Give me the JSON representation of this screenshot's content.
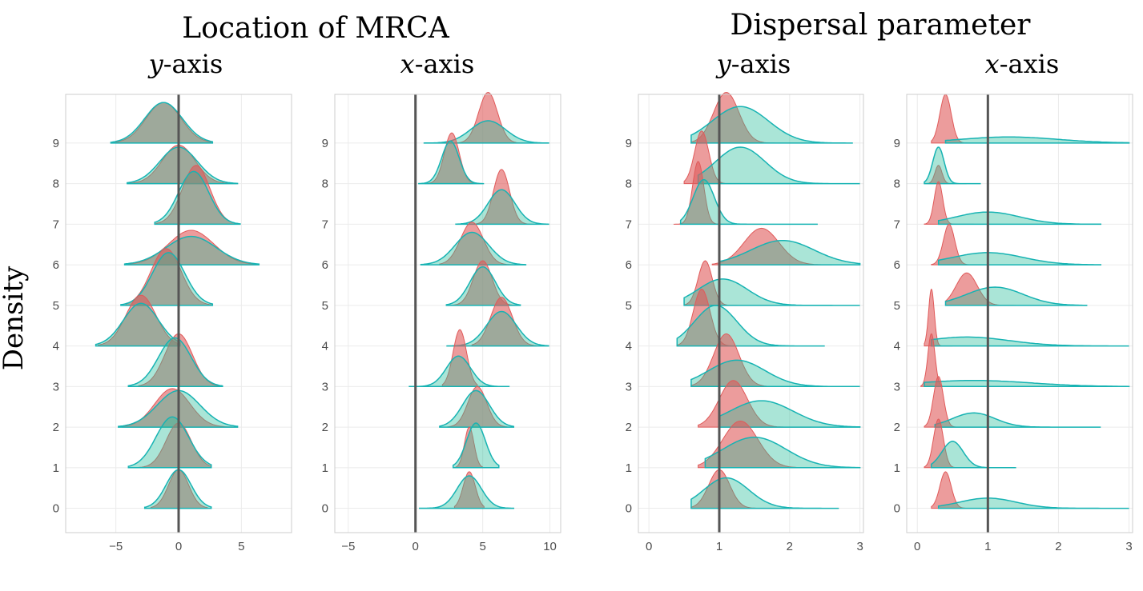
{
  "figure": {
    "group_titles": [
      "Location of MRCA",
      "Dispersal parameter"
    ],
    "ylabel": "Density",
    "colors": {
      "red": "#e05a5a",
      "teal": "#2bbd9c",
      "teal_line": "#17b3b3",
      "ref_line": "#555555",
      "grid": "#ebebeb",
      "frame": "#cccccc"
    }
  },
  "chart_data": [
    {
      "type": "area",
      "group": "Location of MRCA",
      "subtitle_var": "y",
      "subtitle_rest": "-axis",
      "xlim": [
        -9,
        9
      ],
      "xticks": [
        -5,
        0,
        5
      ],
      "ylim": [
        -0.6,
        10.2
      ],
      "yticks": [
        0,
        1,
        2,
        3,
        4,
        5,
        6,
        7,
        8,
        9
      ],
      "reference_x": 0,
      "ridges": [
        {
          "row": 0,
          "red": {
            "mu": 0,
            "s": 0.8,
            "h": 0.95,
            "lo": -2.2,
            "hi": 2.3
          },
          "teal": {
            "mu": 0,
            "s": 1.0,
            "h": 0.95,
            "lo": -2.7,
            "hi": 2.6
          }
        },
        {
          "row": 1,
          "red": {
            "mu": 0,
            "s": 1.0,
            "h": 1.1,
            "lo": -3.3,
            "hi": 2.6
          },
          "teal": {
            "mu": -0.5,
            "s": 1.3,
            "h": 1.25,
            "lo": -4.0,
            "hi": 2.6
          }
        },
        {
          "row": 2,
          "red": {
            "mu": -0.5,
            "s": 1.4,
            "h": 0.95,
            "lo": -4.5,
            "hi": 4.7
          },
          "teal": {
            "mu": 0,
            "s": 1.7,
            "h": 0.9,
            "lo": -4.8,
            "hi": 4.7
          }
        },
        {
          "row": 3,
          "red": {
            "mu": 0,
            "s": 1.1,
            "h": 1.3,
            "lo": -3.2,
            "hi": 3.4
          },
          "teal": {
            "mu": -0.3,
            "s": 1.3,
            "h": 1.2,
            "lo": -4.0,
            "hi": 3.5
          }
        },
        {
          "row": 4,
          "red": {
            "mu": -3,
            "s": 1.2,
            "h": 1.25,
            "lo": -6.4,
            "hi": -0.1
          },
          "teal": {
            "mu": -3,
            "s": 1.4,
            "h": 1.05,
            "lo": -6.6,
            "hi": 0.1
          }
        },
        {
          "row": 5,
          "red": {
            "mu": -1,
            "s": 1.2,
            "h": 1.4,
            "lo": -4.2,
            "hi": 2.7
          },
          "teal": {
            "mu": -0.8,
            "s": 1.3,
            "h": 1.3,
            "lo": -4.6,
            "hi": 2.7
          }
        },
        {
          "row": 6,
          "red": {
            "mu": 1,
            "s": 1.8,
            "h": 0.85,
            "lo": -4.0,
            "hi": 6.2
          },
          "teal": {
            "mu": 1,
            "s": 2.0,
            "h": 0.7,
            "lo": -4.3,
            "hi": 6.4
          }
        },
        {
          "row": 7,
          "red": {
            "mu": 1.4,
            "s": 1.1,
            "h": 1.45,
            "lo": -1.8,
            "hi": 4.8
          },
          "teal": {
            "mu": 1.2,
            "s": 1.2,
            "h": 1.3,
            "lo": -1.9,
            "hi": 4.9
          }
        },
        {
          "row": 8,
          "red": {
            "mu": 0,
            "s": 1.3,
            "h": 0.95,
            "lo": -4.0,
            "hi": 4.6
          },
          "teal": {
            "mu": 0,
            "s": 1.5,
            "h": 0.9,
            "lo": -4.1,
            "hi": 4.7
          }
        },
        {
          "row": 9,
          "red": {
            "mu": -1.2,
            "s": 1.4,
            "h": 1.0,
            "lo": -5.2,
            "hi": 2.6
          },
          "teal": {
            "mu": -1.2,
            "s": 1.5,
            "h": 1.0,
            "lo": -5.4,
            "hi": 2.7
          }
        }
      ]
    },
    {
      "type": "area",
      "group": "Location of MRCA",
      "subtitle_var": "x",
      "subtitle_rest": "-axis",
      "xlim": [
        -6,
        10.8
      ],
      "xticks": [
        -5,
        0,
        5,
        10
      ],
      "ylim": [
        -0.6,
        10.2
      ],
      "yticks": [
        0,
        1,
        2,
        3,
        4,
        5,
        6,
        7,
        8,
        9
      ],
      "reference_x": 0,
      "ridges": [
        {
          "row": 0,
          "red": {
            "mu": 4,
            "s": 0.45,
            "h": 0.9,
            "lo": 2.9,
            "hi": 5.1
          },
          "teal": {
            "mu": 4,
            "s": 0.9,
            "h": 0.8,
            "lo": 0.3,
            "hi": 7.3
          }
        },
        {
          "row": 1,
          "red": {
            "mu": 4,
            "s": 0.35,
            "h": 1.0,
            "lo": 3.0,
            "hi": 5.0
          },
          "teal": {
            "mu": 4.5,
            "s": 0.7,
            "h": 1.1,
            "lo": 2.8,
            "hi": 6.2
          }
        },
        {
          "row": 2,
          "red": {
            "mu": 4.6,
            "s": 0.7,
            "h": 1.0,
            "lo": 2.4,
            "hi": 6.8
          },
          "teal": {
            "mu": 4.5,
            "s": 1.0,
            "h": 0.9,
            "lo": 1.8,
            "hi": 7.3
          }
        },
        {
          "row": 3,
          "red": {
            "mu": 3.3,
            "s": 0.5,
            "h": 1.4,
            "lo": 2.0,
            "hi": 4.6
          },
          "teal": {
            "mu": 3.2,
            "s": 0.9,
            "h": 0.75,
            "lo": -0.5,
            "hi": 7.0
          }
        },
        {
          "row": 4,
          "red": {
            "mu": 6.4,
            "s": 0.8,
            "h": 1.2,
            "lo": 4.2,
            "hi": 9.0
          },
          "teal": {
            "mu": 6.4,
            "s": 1.1,
            "h": 0.85,
            "lo": 2.3,
            "hi": 9.9
          }
        },
        {
          "row": 5,
          "red": {
            "mu": 5,
            "s": 0.7,
            "h": 1.1,
            "lo": 2.7,
            "hi": 7.5
          },
          "teal": {
            "mu": 5,
            "s": 0.95,
            "h": 0.95,
            "lo": 2.3,
            "hi": 7.8
          }
        },
        {
          "row": 6,
          "red": {
            "mu": 4.2,
            "s": 0.85,
            "h": 1.05,
            "lo": 1.8,
            "hi": 7.4
          },
          "teal": {
            "mu": 4.2,
            "s": 1.25,
            "h": 0.8,
            "lo": 0.4,
            "hi": 8.2
          }
        },
        {
          "row": 7,
          "red": {
            "mu": 6.4,
            "s": 0.6,
            "h": 1.35,
            "lo": 4.3,
            "hi": 8.6
          },
          "teal": {
            "mu": 6.4,
            "s": 1.0,
            "h": 0.85,
            "lo": 3.0,
            "hi": 9.9
          }
        },
        {
          "row": 8,
          "red": {
            "mu": 2.7,
            "s": 0.55,
            "h": 1.25,
            "lo": 0.7,
            "hi": 5.0
          },
          "teal": {
            "mu": 2.6,
            "s": 0.65,
            "h": 1.05,
            "lo": 0.2,
            "hi": 5.1
          }
        },
        {
          "row": 9,
          "red": {
            "mu": 5.4,
            "s": 0.7,
            "h": 1.25,
            "lo": 2.2,
            "hi": 8.0
          },
          "teal": {
            "mu": 5.4,
            "s": 1.3,
            "h": 0.55,
            "lo": 0.6,
            "hi": 9.9
          }
        }
      ]
    },
    {
      "type": "area",
      "group": "Dispersal parameter",
      "subtitle_var": "y",
      "subtitle_rest": "-axis",
      "xlim": [
        -0.15,
        3.05
      ],
      "xticks": [
        0,
        1,
        2,
        3
      ],
      "ylim": [
        -0.6,
        10.2
      ],
      "yticks": [
        0,
        1,
        2,
        3,
        4,
        5,
        6,
        7,
        8,
        9
      ],
      "reference_x": 1,
      "ridges": [
        {
          "row": 0,
          "red": {
            "mu": 1.0,
            "s": 0.15,
            "h": 0.95,
            "lo": 0.6,
            "hi": 2.0
          },
          "teal": {
            "mu": 1.1,
            "s": 0.32,
            "h": 0.75,
            "lo": 0.6,
            "hi": 2.7
          }
        },
        {
          "row": 1,
          "red": {
            "mu": 1.3,
            "s": 0.25,
            "h": 1.15,
            "lo": 0.7,
            "hi": 2.9
          },
          "teal": {
            "mu": 1.5,
            "s": 0.45,
            "h": 0.75,
            "lo": 0.8,
            "hi": 3.0
          }
        },
        {
          "row": 2,
          "red": {
            "mu": 1.2,
            "s": 0.2,
            "h": 1.15,
            "lo": 0.7,
            "hi": 2.3
          },
          "teal": {
            "mu": 1.6,
            "s": 0.45,
            "h": 0.65,
            "lo": 1.0,
            "hi": 3.0
          }
        },
        {
          "row": 3,
          "red": {
            "mu": 1.1,
            "s": 0.18,
            "h": 1.3,
            "lo": 0.6,
            "hi": 2.2
          },
          "teal": {
            "mu": 1.25,
            "s": 0.4,
            "h": 0.65,
            "lo": 0.6,
            "hi": 3.0
          }
        },
        {
          "row": 4,
          "red": {
            "mu": 0.75,
            "s": 0.12,
            "h": 1.4,
            "lo": 0.4,
            "hi": 1.8
          },
          "teal": {
            "mu": 0.95,
            "s": 0.3,
            "h": 1.0,
            "lo": 0.4,
            "hi": 2.5
          }
        },
        {
          "row": 5,
          "red": {
            "mu": 0.8,
            "s": 0.1,
            "h": 1.1,
            "lo": 0.5,
            "hi": 1.7
          },
          "teal": {
            "mu": 1.05,
            "s": 0.35,
            "h": 0.65,
            "lo": 0.5,
            "hi": 3.0
          }
        },
        {
          "row": 6,
          "red": {
            "mu": 1.6,
            "s": 0.25,
            "h": 0.9,
            "lo": 0.9,
            "hi": 2.6
          },
          "teal": {
            "mu": 1.9,
            "s": 0.45,
            "h": 0.6,
            "lo": 1.0,
            "hi": 3.0
          }
        },
        {
          "row": 7,
          "red": {
            "mu": 0.7,
            "s": 0.08,
            "h": 1.55,
            "lo": 0.35,
            "hi": 1.6
          },
          "teal": {
            "mu": 0.78,
            "s": 0.15,
            "h": 1.1,
            "lo": 0.45,
            "hi": 2.4
          }
        },
        {
          "row": 8,
          "red": {
            "mu": 0.75,
            "s": 0.1,
            "h": 1.3,
            "lo": 0.5,
            "hi": 2.0
          },
          "teal": {
            "mu": 1.3,
            "s": 0.35,
            "h": 0.9,
            "lo": 0.7,
            "hi": 3.0
          }
        },
        {
          "row": 9,
          "red": {
            "mu": 1.1,
            "s": 0.18,
            "h": 1.25,
            "lo": 0.6,
            "hi": 2.2
          },
          "teal": {
            "mu": 1.3,
            "s": 0.4,
            "h": 0.9,
            "lo": 0.6,
            "hi": 2.9
          }
        }
      ]
    },
    {
      "type": "area",
      "group": "Dispersal parameter",
      "subtitle_var": "x",
      "subtitle_rest": "-axis",
      "xlim": [
        -0.15,
        3.05
      ],
      "xticks": [
        0,
        1,
        2,
        3
      ],
      "ylim": [
        -0.6,
        10.2
      ],
      "yticks": [
        0,
        1,
        2,
        3,
        4,
        5,
        6,
        7,
        8,
        9
      ],
      "reference_x": 1,
      "ridges": [
        {
          "row": 0,
          "red": {
            "mu": 0.4,
            "s": 0.08,
            "h": 0.9,
            "lo": 0.2,
            "hi": 1.1
          },
          "teal": {
            "mu": 1.0,
            "s": 0.4,
            "h": 0.25,
            "lo": 0.3,
            "hi": 3.0
          }
        },
        {
          "row": 1,
          "red": {
            "mu": 0.3,
            "s": 0.07,
            "h": 1.2,
            "lo": 0.1,
            "hi": 1.0
          },
          "teal": {
            "mu": 0.5,
            "s": 0.15,
            "h": 0.65,
            "lo": 0.2,
            "hi": 1.4
          }
        },
        {
          "row": 2,
          "red": {
            "mu": 0.3,
            "s": 0.07,
            "h": 1.25,
            "lo": 0.1,
            "hi": 1.0
          },
          "teal": {
            "mu": 0.8,
            "s": 0.3,
            "h": 0.35,
            "lo": 0.25,
            "hi": 2.6
          }
        },
        {
          "row": 3,
          "red": {
            "mu": 0.2,
            "s": 0.05,
            "h": 1.3,
            "lo": 0.05,
            "hi": 0.5
          },
          "teal": {
            "mu": 0.8,
            "s": 0.8,
            "h": 0.15,
            "lo": 0.1,
            "hi": 3.0
          }
        },
        {
          "row": 4,
          "red": {
            "mu": 0.2,
            "s": 0.04,
            "h": 1.4,
            "lo": 0.1,
            "hi": 0.5
          },
          "teal": {
            "mu": 0.7,
            "s": 0.6,
            "h": 0.22,
            "lo": 0.2,
            "hi": 3.0
          }
        },
        {
          "row": 5,
          "red": {
            "mu": 0.7,
            "s": 0.15,
            "h": 0.8,
            "lo": 0.4,
            "hi": 1.4
          },
          "teal": {
            "mu": 1.1,
            "s": 0.4,
            "h": 0.45,
            "lo": 0.4,
            "hi": 2.4
          }
        },
        {
          "row": 6,
          "red": {
            "mu": 0.45,
            "s": 0.08,
            "h": 1.0,
            "lo": 0.2,
            "hi": 1.0
          },
          "teal": {
            "mu": 1.0,
            "s": 0.5,
            "h": 0.3,
            "lo": 0.3,
            "hi": 2.6
          }
        },
        {
          "row": 7,
          "red": {
            "mu": 0.3,
            "s": 0.06,
            "h": 1.05,
            "lo": 0.1,
            "hi": 0.8
          },
          "teal": {
            "mu": 1.0,
            "s": 0.45,
            "h": 0.3,
            "lo": 0.3,
            "hi": 2.6
          }
        },
        {
          "row": 8,
          "red": {
            "mu": 0.3,
            "s": 0.05,
            "h": 0.45,
            "lo": 0.1,
            "hi": 0.7
          },
          "teal": {
            "mu": 0.3,
            "s": 0.08,
            "h": 0.9,
            "lo": 0.1,
            "hi": 0.9
          }
        },
        {
          "row": 9,
          "red": {
            "mu": 0.4,
            "s": 0.08,
            "h": 1.2,
            "lo": 0.2,
            "hi": 1.0
          },
          "teal": {
            "mu": 1.3,
            "s": 0.7,
            "h": 0.15,
            "lo": 0.4,
            "hi": 3.0
          }
        }
      ]
    }
  ]
}
